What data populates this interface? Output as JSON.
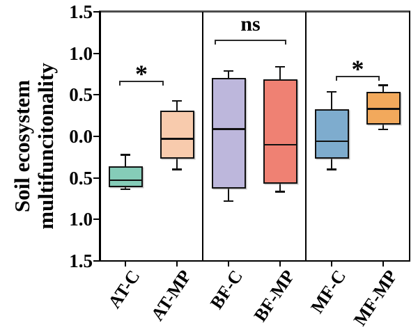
{
  "figure": {
    "ylabel_lines": [
      "Soil ecosystem",
      "multifuncitonality"
    ]
  },
  "chart_data": {
    "type": "boxplot",
    "title": "",
    "ylabel": "Soil ecosystem multifuncitonality",
    "xlabel": "",
    "ylim": [
      -1.5,
      1.5
    ],
    "grid": false,
    "ytick_labels": [
      "1.5",
      "1.0",
      "0.5",
      "0.0",
      "0.5",
      "1.0",
      "1.5"
    ],
    "ytick_values": [
      1.5,
      1.0,
      0.5,
      0.0,
      -0.5,
      -1.0,
      -1.5
    ],
    "categories": [
      "AT-C",
      "AT-MP",
      "BF-C",
      "BF-MP",
      "MF-C",
      "MF-MP"
    ],
    "boxes": [
      {
        "category": "AT-C",
        "color": "#85CCB8",
        "whisker_low": -0.64,
        "q1": -0.61,
        "median": -0.53,
        "q3": -0.36,
        "whisker_high": -0.22
      },
      {
        "category": "AT-MP",
        "color": "#F8CBAD",
        "whisker_low": -0.4,
        "q1": -0.27,
        "median": -0.03,
        "q3": 0.31,
        "whisker_high": 0.43
      },
      {
        "category": "BF-C",
        "color": "#BDB7DC",
        "whisker_low": -0.78,
        "q1": -0.63,
        "median": 0.09,
        "q3": 0.7,
        "whisker_high": 0.79
      },
      {
        "category": "BF-MP",
        "color": "#EF8173",
        "whisker_low": -0.67,
        "q1": -0.57,
        "median": -0.1,
        "q3": 0.69,
        "whisker_high": 0.84
      },
      {
        "category": "MF-C",
        "color": "#7EACCE",
        "whisker_low": -0.4,
        "q1": -0.27,
        "median": -0.06,
        "q3": 0.33,
        "whisker_high": 0.54
      },
      {
        "category": "MF-MP",
        "color": "#F2A95C",
        "whisker_low": 0.08,
        "q1": 0.14,
        "median": 0.33,
        "q3": 0.54,
        "whisker_high": 0.62
      }
    ],
    "annotations": [
      {
        "label": "*",
        "between": [
          "AT-C",
          "AT-MP"
        ],
        "y": 0.66
      },
      {
        "label": "ns",
        "between": [
          "BF-C",
          "BF-MP"
        ],
        "y": 1.16
      },
      {
        "label": "*",
        "between": [
          "MF-C",
          "MF-MP"
        ],
        "y": 0.72
      }
    ],
    "panel_separators_after": [
      "AT-MP",
      "BF-MP"
    ]
  }
}
